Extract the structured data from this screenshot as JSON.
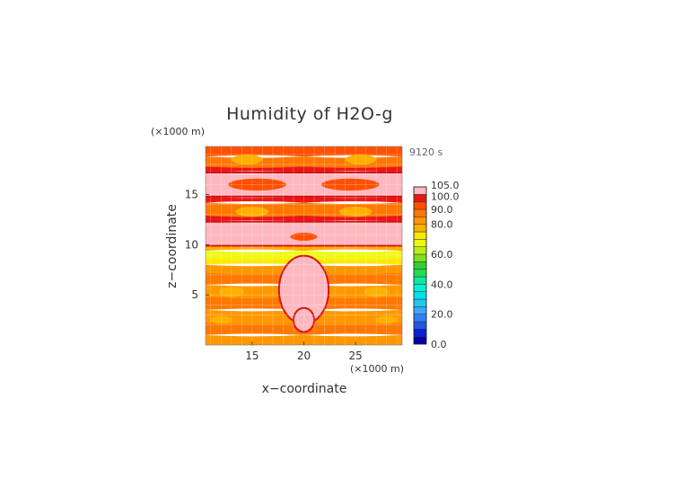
{
  "chart_data": {
    "type": "heatmap",
    "title": "Humidity of H2O-g",
    "time_label": "9120 s",
    "xlabel": "x−coordinate",
    "ylabel": "z−coordinate",
    "x_unit": "(×1000 m)",
    "y_unit": "(×1000 m)",
    "xlim": [
      10.5,
      29.5
    ],
    "ylim": [
      0,
      19.8
    ],
    "x_ticks": [
      15,
      20,
      25
    ],
    "y_ticks": [
      5,
      10,
      15
    ],
    "grid": true,
    "colorbar": {
      "levels": [
        0,
        5,
        10,
        15,
        20,
        25,
        30,
        35,
        40,
        45,
        50,
        55,
        60,
        65,
        70,
        75,
        80,
        85,
        90,
        95,
        100,
        105
      ],
      "colors": [
        "#0000aa",
        "#0a1fd0",
        "#1f55e8",
        "#2f7ff5",
        "#3aa8ff",
        "#22c8f0",
        "#00e0ee",
        "#00f0d8",
        "#10e6a0",
        "#20dd50",
        "#30d030",
        "#80e020",
        "#b8f010",
        "#f0f810",
        "#ffe800",
        "#ffb000",
        "#ff9800",
        "#ff7800",
        "#ff5000",
        "#e81818",
        "#ffb8c0"
      ],
      "tick_labels": [
        "0.0",
        "20.0",
        "40.0",
        "60.0",
        "80.0",
        "90.0",
        "100.0",
        "105.0"
      ],
      "tick_values": [
        0,
        20,
        40,
        60,
        80,
        90,
        100,
        105
      ]
    },
    "field_description": "Symmetric about x=20; saturated (>100%) bands near z=1.5-9, z=10-12, z=14-17.5; dry (60-75%) band near z=8.5-9.5",
    "bands": [
      {
        "zmin": 0.0,
        "zmax": 1.0,
        "level": 84
      },
      {
        "zmin": 1.0,
        "zmax": 2.2,
        "level": 86
      },
      {
        "zmin": 2.2,
        "zmax": 3.5,
        "level": 84
      },
      {
        "zmin": 3.5,
        "zmax": 4.8,
        "level": 86
      },
      {
        "zmin": 4.8,
        "zmax": 6.0,
        "level": 80
      },
      {
        "zmin": 6.0,
        "zmax": 7.2,
        "level": 86
      },
      {
        "zmin": 7.2,
        "zmax": 8.0,
        "level": 82
      },
      {
        "zmin": 8.0,
        "zmax": 8.6,
        "level": 74
      },
      {
        "zmin": 8.6,
        "zmax": 9.4,
        "level": 66
      },
      {
        "zmin": 9.4,
        "zmax": 9.9,
        "level": 76
      },
      {
        "zmin": 9.9,
        "zmax": 12.3,
        "level": 102
      },
      {
        "zmin": 12.3,
        "zmax": 12.9,
        "level": 96
      },
      {
        "zmin": 12.9,
        "zmax": 14.2,
        "level": 86
      },
      {
        "zmin": 14.2,
        "zmax": 14.8,
        "level": 96
      },
      {
        "zmin": 14.8,
        "zmax": 17.2,
        "level": 102
      },
      {
        "zmin": 17.2,
        "zmax": 17.8,
        "level": 96
      },
      {
        "zmin": 17.8,
        "zmax": 18.8,
        "level": 86
      },
      {
        "zmin": 18.8,
        "zmax": 19.8,
        "level": 90
      }
    ],
    "blobs": [
      {
        "x": 13.0,
        "z": 5.3,
        "rx": 1.2,
        "rz": 0.5,
        "level": 78
      },
      {
        "x": 27.0,
        "z": 5.3,
        "rx": 1.2,
        "rz": 0.5,
        "level": 78
      },
      {
        "x": 12.0,
        "z": 2.5,
        "rx": 1.0,
        "rz": 0.4,
        "level": 78
      },
      {
        "x": 28.0,
        "z": 2.5,
        "rx": 1.0,
        "rz": 0.4,
        "level": 78
      },
      {
        "x": 15.0,
        "z": 13.3,
        "rx": 1.6,
        "rz": 0.5,
        "level": 78
      },
      {
        "x": 25.0,
        "z": 13.3,
        "rx": 1.6,
        "rz": 0.5,
        "level": 78
      },
      {
        "x": 14.5,
        "z": 18.5,
        "rx": 1.5,
        "rz": 0.5,
        "level": 78
      },
      {
        "x": 25.5,
        "z": 18.5,
        "rx": 1.5,
        "rz": 0.5,
        "level": 78
      },
      {
        "x": 20.0,
        "z": 5.5,
        "rx": 2.4,
        "rz": 3.4,
        "level": 102
      },
      {
        "x": 20.0,
        "z": 2.5,
        "rx": 1.0,
        "rz": 1.2,
        "level": 102
      },
      {
        "x": 15.5,
        "z": 16.0,
        "rx": 2.8,
        "rz": 0.6,
        "level": 92
      },
      {
        "x": 24.5,
        "z": 16.0,
        "rx": 2.8,
        "rz": 0.6,
        "level": 92
      },
      {
        "x": 20.0,
        "z": 10.8,
        "rx": 1.3,
        "rz": 0.4,
        "level": 92
      },
      {
        "x": 20.0,
        "z": 19.4,
        "rx": 1.0,
        "rz": 0.3,
        "level": 92
      }
    ]
  }
}
